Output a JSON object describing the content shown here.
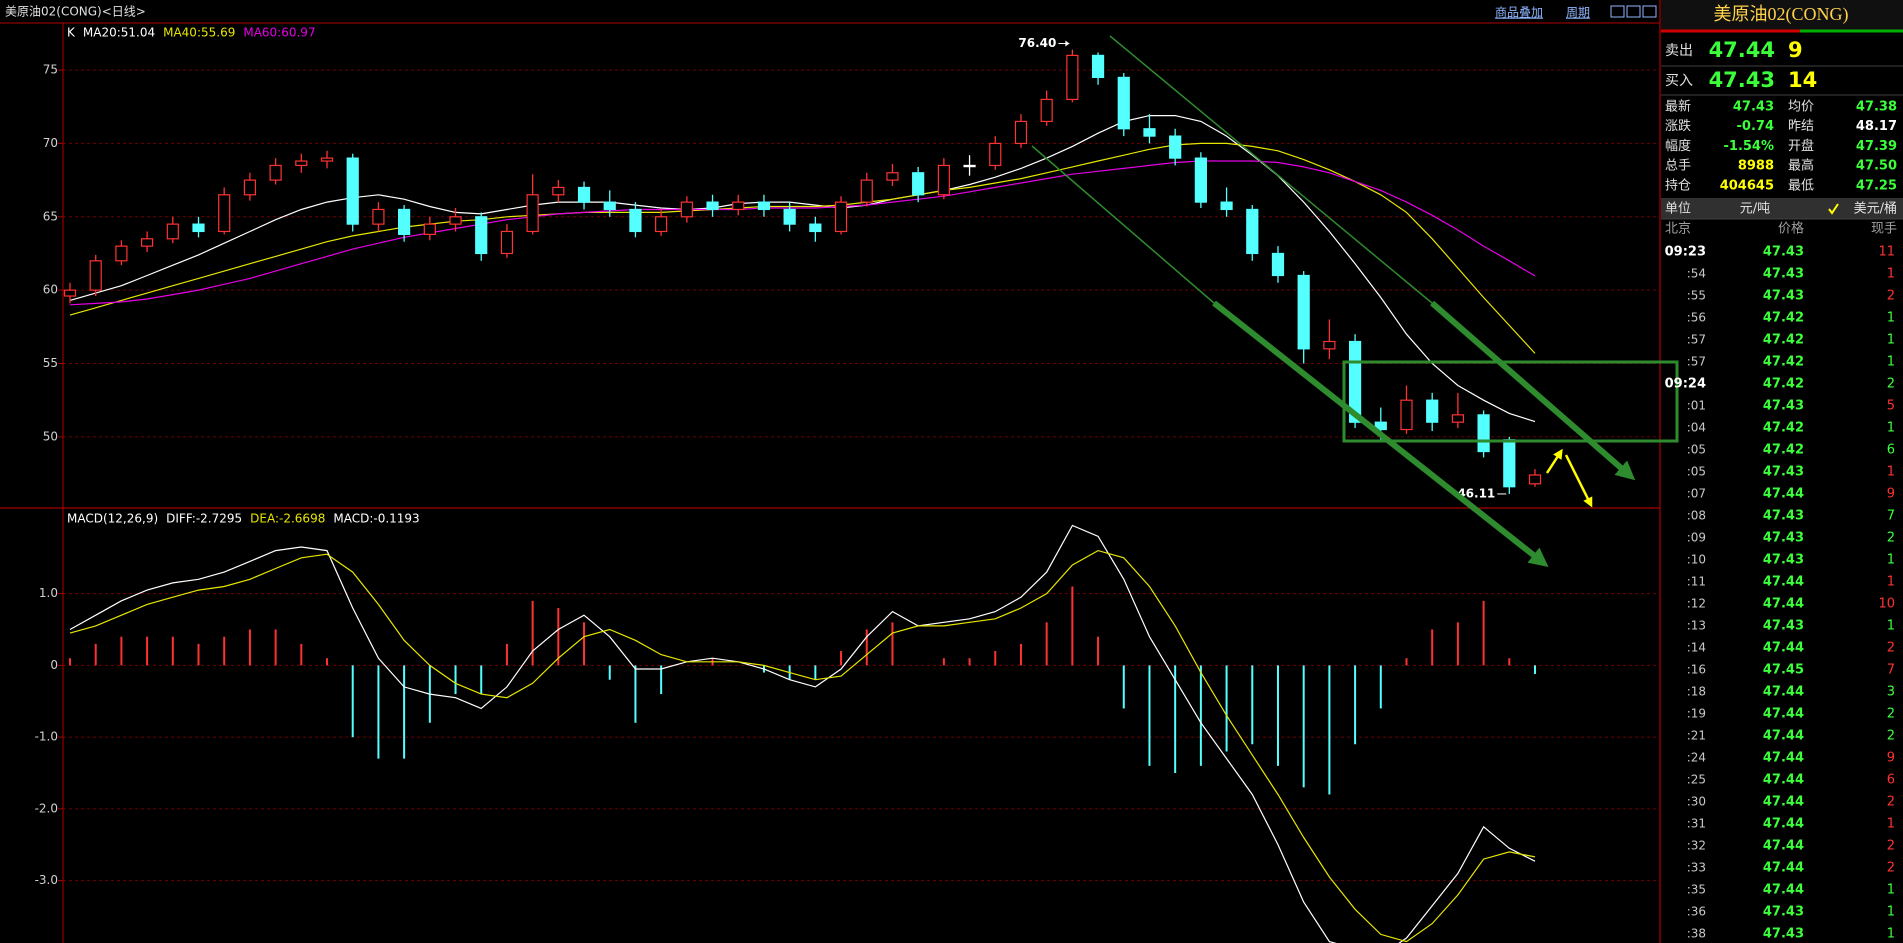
{
  "header": {
    "title": "美原油02(CONG)<日线>",
    "buttons": [
      "商品叠加",
      "周期"
    ]
  },
  "chart_data": [
    {
      "type": "candlestick",
      "legend_prefix": "K",
      "up_color": "#ff3232",
      "down_color": "#54ffff",
      "open": [
        59.6,
        60,
        62,
        63,
        63.5,
        64.5,
        64,
        66.5,
        67.5,
        68.5,
        68.8,
        69,
        64.5,
        65.5,
        63.8,
        64.5,
        65,
        62.5,
        64,
        66.5,
        67,
        66,
        65.5,
        64,
        65,
        66,
        65.5,
        66,
        65.5,
        64.5,
        64,
        66,
        67.5,
        68,
        66.5,
        68.5,
        68.5,
        70,
        71.5,
        73,
        76,
        74.5,
        71,
        70.5,
        69,
        66,
        65.5,
        62.5,
        61,
        56,
        56.5,
        51,
        50.5,
        52.5,
        51,
        51.5,
        49.8,
        46.8
      ],
      "high": [
        60.5,
        62.4,
        63.4,
        64,
        65,
        65,
        67,
        68,
        69,
        69.3,
        69.5,
        69.3,
        66,
        65.8,
        65,
        65.6,
        65.3,
        64.5,
        67.9,
        67.5,
        67.4,
        66.8,
        66,
        65.5,
        66.4,
        66.5,
        66.5,
        66.5,
        66,
        65,
        66.4,
        68,
        68.6,
        68.4,
        69,
        69.2,
        70.5,
        72,
        73.6,
        76.4,
        76.2,
        74.8,
        72,
        71,
        69.4,
        67,
        65.8,
        63,
        61.3,
        58,
        57,
        52,
        53.5,
        53,
        53,
        51.8,
        50,
        47.8
      ],
      "low": [
        59.1,
        59.6,
        61.7,
        62.6,
        63.2,
        63.6,
        63.8,
        66.1,
        67.2,
        68,
        68.3,
        64,
        64,
        63.3,
        63.4,
        64,
        62,
        62.2,
        63.8,
        66,
        65.5,
        65,
        63.6,
        63.7,
        64.6,
        65,
        65.1,
        65,
        64,
        63.3,
        63.8,
        65.7,
        67.1,
        66,
        66.2,
        67.8,
        68.2,
        69.7,
        71.2,
        72.8,
        74,
        70.5,
        70,
        68.5,
        65.6,
        65,
        62,
        60.5,
        55,
        55.3,
        50.6,
        49.8,
        50.2,
        50.4,
        50.6,
        48.6,
        46.11,
        46.6
      ],
      "close": [
        60,
        62,
        63,
        63.5,
        64.5,
        64,
        66.5,
        67.5,
        68.5,
        68.8,
        69,
        64.5,
        65.5,
        63.8,
        64.5,
        65,
        62.5,
        64,
        66.5,
        67,
        66,
        65.5,
        64,
        65,
        66,
        65.5,
        66,
        65.5,
        64.5,
        64,
        66,
        67.5,
        68,
        66.5,
        68.5,
        68.5,
        70,
        71.5,
        73,
        76,
        74.5,
        71,
        70.5,
        69,
        66,
        65.5,
        62.5,
        61,
        56,
        56.5,
        51,
        50.5,
        52.5,
        51,
        51.5,
        49,
        46.6,
        47.4
      ],
      "series": [
        {
          "name": "MA20:51.04",
          "color": "#ffffff",
          "values": [
            59.3,
            59.8,
            60.3,
            61,
            61.7,
            62.4,
            63.2,
            64,
            64.8,
            65.5,
            66,
            66.3,
            66.5,
            66.2,
            65.7,
            65.3,
            65.2,
            65.5,
            65.8,
            66,
            66,
            66,
            65.8,
            65.6,
            65.5,
            65.6,
            65.9,
            66,
            66,
            65.8,
            65.6,
            65.8,
            66.2,
            66.5,
            66.8,
            67.2,
            67.7,
            68.3,
            69,
            69.8,
            70.7,
            71.5,
            71.9,
            71.9,
            71.5,
            70.5,
            69.2,
            67.8,
            66,
            64,
            61.8,
            59.5,
            57,
            55,
            53.5,
            52.5,
            51.6,
            51.04
          ]
        },
        {
          "name": "MA40:55.69",
          "color": "#e6e600",
          "values": [
            58.3,
            58.8,
            59.3,
            59.8,
            60.3,
            60.8,
            61.3,
            61.8,
            62.3,
            62.8,
            63.3,
            63.7,
            64,
            64.3,
            64.5,
            64.7,
            64.8,
            65,
            65.1,
            65.2,
            65.3,
            65.3,
            65.3,
            65.3,
            65.4,
            65.5,
            65.6,
            65.7,
            65.7,
            65.7,
            65.8,
            66,
            66.2,
            66.5,
            66.8,
            67,
            67.3,
            67.6,
            68,
            68.4,
            68.8,
            69.2,
            69.6,
            69.9,
            70,
            70,
            69.8,
            69.5,
            68.9,
            68.2,
            67.4,
            66.5,
            65.3,
            63.5,
            61.5,
            59.5,
            57.6,
            55.69
          ]
        },
        {
          "name": "MA60:60.97",
          "color": "#e600e6",
          "values": [
            59,
            59.1,
            59.2,
            59.4,
            59.7,
            60,
            60.4,
            60.8,
            61.3,
            61.8,
            62.3,
            62.8,
            63.2,
            63.6,
            63.9,
            64.2,
            64.5,
            64.8,
            65,
            65.2,
            65.3,
            65.4,
            65.5,
            65.5,
            65.5,
            65.5,
            65.5,
            65.6,
            65.6,
            65.6,
            65.7,
            65.8,
            66,
            66.2,
            66.4,
            66.7,
            67,
            67.3,
            67.6,
            67.9,
            68.1,
            68.3,
            68.5,
            68.7,
            68.8,
            68.8,
            68.8,
            68.7,
            68.4,
            68,
            67.4,
            66.8,
            66,
            65.1,
            64.1,
            63,
            62,
            60.97
          ]
        }
      ],
      "annotations": {
        "high_label": "76.40",
        "low_label": "46.11"
      },
      "ylim": [
        45.22,
        78.14
      ],
      "yticks": [
        50,
        55,
        60,
        65,
        70,
        75
      ],
      "grid": true
    },
    {
      "type": "macd",
      "title": "MACD(12,26,9)",
      "series": [
        {
          "name": "DIFF:-2.7295",
          "color": "#ffffff",
          "values": [
            0.5,
            0.7,
            0.9,
            1.05,
            1.15,
            1.2,
            1.3,
            1.45,
            1.6,
            1.65,
            1.6,
            0.8,
            0.1,
            -0.3,
            -0.4,
            -0.45,
            -0.6,
            -0.3,
            0.2,
            0.5,
            0.7,
            0.4,
            -0.05,
            -0.05,
            0.05,
            0.1,
            0.05,
            -0.05,
            -0.2,
            -0.3,
            -0.05,
            0.4,
            0.75,
            0.55,
            0.6,
            0.65,
            0.75,
            0.95,
            1.3,
            1.95,
            1.8,
            1.2,
            0.4,
            -0.2,
            -0.8,
            -1.3,
            -1.8,
            -2.5,
            -3.3,
            -3.85,
            -3.95,
            -4.05,
            -3.8,
            -3.35,
            -2.9,
            -2.25,
            -2.55,
            -2.7295
          ]
        },
        {
          "name": "DEA:-2.6698",
          "color": "#e6e600",
          "values": [
            0.45,
            0.55,
            0.7,
            0.85,
            0.95,
            1.05,
            1.1,
            1.2,
            1.35,
            1.5,
            1.55,
            1.3,
            0.85,
            0.35,
            0.0,
            -0.25,
            -0.4,
            -0.45,
            -0.25,
            0.1,
            0.4,
            0.5,
            0.35,
            0.15,
            0.05,
            0.05,
            0.05,
            0.0,
            -0.1,
            -0.2,
            -0.15,
            0.15,
            0.45,
            0.55,
            0.55,
            0.6,
            0.65,
            0.8,
            1.0,
            1.4,
            1.6,
            1.5,
            1.1,
            0.55,
            -0.1,
            -0.7,
            -1.25,
            -1.8,
            -2.4,
            -2.95,
            -3.4,
            -3.75,
            -3.85,
            -3.6,
            -3.2,
            -2.7,
            -2.6,
            -2.6698
          ]
        }
      ],
      "histogram": {
        "name": "MACD:-0.1193",
        "up_color": "#ff3232",
        "down_color": "#54ffff",
        "values": [
          0.1,
          0.3,
          0.4,
          0.4,
          0.4,
          0.3,
          0.4,
          0.5,
          0.5,
          0.3,
          0.1,
          -1.0,
          -1.3,
          -1.3,
          -0.8,
          -0.4,
          -0.4,
          0.3,
          0.9,
          0.8,
          0.6,
          -0.2,
          -0.8,
          -0.4,
          0,
          0.1,
          0,
          -0.1,
          -0.2,
          -0.2,
          0.2,
          0.5,
          0.6,
          0,
          0.1,
          0.1,
          0.2,
          0.3,
          0.6,
          1.1,
          0.4,
          -0.6,
          -1.4,
          -1.5,
          -1.4,
          -1.2,
          -1.1,
          -1.4,
          -1.7,
          -1.8,
          -1.1,
          -0.6,
          0.1,
          0.5,
          0.6,
          0.9,
          0.1,
          -0.1193
        ]
      },
      "ylim": [
        -3.87,
        2.18
      ],
      "yticks": [
        {
          "value": 1,
          "label": "1.0"
        },
        0,
        {
          "value": -1,
          "label": "-1.0"
        },
        {
          "value": -2,
          "label": "-2.0"
        },
        {
          "value": -3,
          "label": "-3.0"
        }
      ],
      "grid": true
    }
  ],
  "quote_panel": {
    "title": "美原油02(CONG)",
    "sell": {
      "label": "卖出",
      "price": "47.44",
      "volume": "9"
    },
    "buy": {
      "label": "买入",
      "price": "47.43",
      "volume": "14"
    },
    "stats": [
      {
        "label": "最新",
        "value": "47.43",
        "color": "#3cff3c"
      },
      {
        "label": "均价",
        "value": "47.38",
        "color": "#3cff3c"
      },
      {
        "label": "涨跌",
        "value": "-0.74",
        "color": "#3cff3c"
      },
      {
        "label": "昨结",
        "value": "48.17",
        "color": "#ffffff"
      },
      {
        "label": "幅度",
        "value": "-1.54%",
        "color": "#3cff3c"
      },
      {
        "label": "开盘",
        "value": "47.39",
        "color": "#3cff3c"
      },
      {
        "label": "总手",
        "value": "8988",
        "color": "#ffff00"
      },
      {
        "label": "最高",
        "value": "47.50",
        "color": "#3cff3c"
      },
      {
        "label": "持仓",
        "value": "404645",
        "color": "#ffff00"
      },
      {
        "label": "最低",
        "value": "47.25",
        "color": "#3cff3c"
      }
    ],
    "unit": {
      "label": "单位",
      "options": [
        "元/吨",
        "美元/桶"
      ]
    },
    "ticks_header": [
      "北京",
      "价格",
      "现手"
    ],
    "price_color": "#3cff3c",
    "ticks": [
      {
        "time": "09:23",
        "price": "47.43",
        "volume": "11",
        "color": "#ff3232"
      },
      {
        "time": ":54",
        "price": "47.43",
        "volume": "1",
        "color": "#ff3232"
      },
      {
        "time": ":55",
        "price": "47.43",
        "volume": "2",
        "color": "#ff3232"
      },
      {
        "time": ":56",
        "price": "47.42",
        "volume": "1",
        "color": "#3cff3c"
      },
      {
        "time": ":57",
        "price": "47.42",
        "volume": "1",
        "color": "#3cff3c"
      },
      {
        "time": ":57",
        "price": "47.42",
        "volume": "1",
        "color": "#3cff3c"
      },
      {
        "time": "09:24",
        "price": "47.42",
        "volume": "2",
        "color": "#3cff3c"
      },
      {
        "time": ":01",
        "price": "47.43",
        "volume": "5",
        "color": "#ff3232"
      },
      {
        "time": ":04",
        "price": "47.42",
        "volume": "1",
        "color": "#3cff3c"
      },
      {
        "time": ":05",
        "price": "47.42",
        "volume": "6",
        "color": "#3cff3c"
      },
      {
        "time": ":05",
        "price": "47.43",
        "volume": "1",
        "color": "#ff3232"
      },
      {
        "time": ":07",
        "price": "47.44",
        "volume": "9",
        "color": "#ff3232"
      },
      {
        "time": ":08",
        "price": "47.43",
        "volume": "7",
        "color": "#3cff3c"
      },
      {
        "time": ":09",
        "price": "47.43",
        "volume": "2",
        "color": "#3cff3c"
      },
      {
        "time": ":10",
        "price": "47.43",
        "volume": "1",
        "color": "#3cff3c"
      },
      {
        "time": ":11",
        "price": "47.44",
        "volume": "1",
        "color": "#ff3232"
      },
      {
        "time": ":12",
        "price": "47.44",
        "volume": "10",
        "color": "#ff3232"
      },
      {
        "time": ":13",
        "price": "47.43",
        "volume": "1",
        "color": "#3cff3c"
      },
      {
        "time": ":14",
        "price": "47.44",
        "volume": "2",
        "color": "#ff3232"
      },
      {
        "time": ":16",
        "price": "47.45",
        "volume": "7",
        "color": "#ff3232"
      },
      {
        "time": ":18",
        "price": "47.44",
        "volume": "3",
        "color": "#3cff3c"
      },
      {
        "time": ":19",
        "price": "47.44",
        "volume": "2",
        "color": "#3cff3c"
      },
      {
        "time": ":21",
        "price": "47.44",
        "volume": "2",
        "color": "#3cff3c"
      },
      {
        "time": ":24",
        "price": "47.44",
        "volume": "9",
        "color": "#ff3232"
      },
      {
        "time": ":25",
        "price": "47.44",
        "volume": "6",
        "color": "#ff3232"
      },
      {
        "time": ":30",
        "price": "47.44",
        "volume": "2",
        "color": "#ff3232"
      },
      {
        "time": ":31",
        "price": "47.44",
        "volume": "1",
        "color": "#ff3232"
      },
      {
        "time": ":32",
        "price": "47.44",
        "volume": "2",
        "color": "#ff3232"
      },
      {
        "time": ":33",
        "price": "47.44",
        "volume": "2",
        "color": "#ff3232"
      },
      {
        "time": ":35",
        "price": "47.44",
        "volume": "1",
        "color": "#3cff3c"
      },
      {
        "time": ":36",
        "price": "47.43",
        "volume": "1",
        "color": "#3cff3c"
      },
      {
        "time": ":38",
        "price": "47.43",
        "volume": "1",
        "color": "#3cff3c"
      }
    ]
  }
}
